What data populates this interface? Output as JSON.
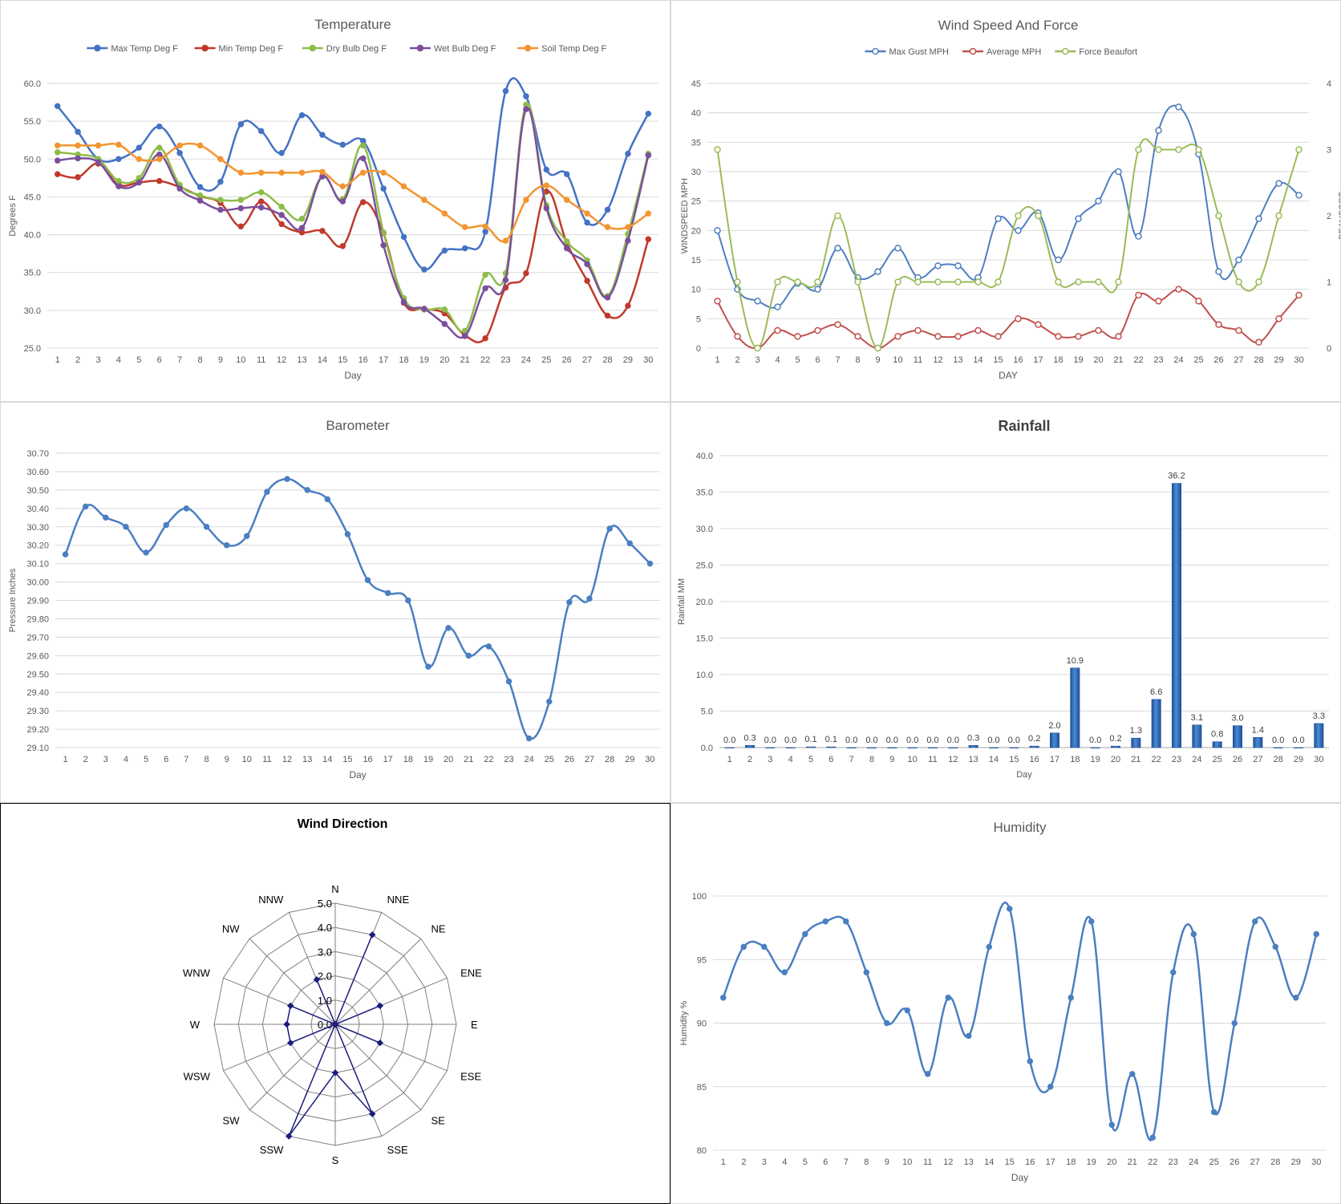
{
  "days": [
    "1",
    "2",
    "3",
    "4",
    "5",
    "6",
    "7",
    "8",
    "9",
    "10",
    "11",
    "12",
    "13",
    "14",
    "15",
    "16",
    "17",
    "18",
    "19",
    "20",
    "21",
    "22",
    "23",
    "24",
    "25",
    "26",
    "27",
    "28",
    "29",
    "30"
  ],
  "chart_data": [
    {
      "id": "temp",
      "type": "line",
      "title": "Temperature",
      "xlabel": "Day",
      "ylabel": "Degrees F",
      "ylim": [
        25,
        60
      ],
      "ytick_labels": [
        "25.0",
        "30.0",
        "35.0",
        "40.0",
        "45.0",
        "50.0",
        "55.0",
        "60.0"
      ],
      "legend_position": "top",
      "series": [
        {
          "name": "Max Temp Deg F",
          "color": "#4472c4",
          "values": [
            57.0,
            53.6,
            50.0,
            50.0,
            51.5,
            54.3,
            50.8,
            46.3,
            47.0,
            54.6,
            53.7,
            50.8,
            55.8,
            53.2,
            51.9,
            52.4,
            46.1,
            39.7,
            35.4,
            37.9,
            38.2,
            40.4,
            59.0,
            58.3,
            48.6,
            48.0,
            41.6,
            43.3,
            50.7,
            56.0
          ]
        },
        {
          "name": "Min Temp Deg F",
          "color": "#c0392b",
          "values": [
            48.0,
            47.6,
            49.4,
            46.6,
            46.9,
            47.1,
            46.3,
            45.1,
            44.2,
            41.1,
            44.4,
            41.4,
            40.3,
            40.5,
            38.5,
            44.3,
            40.2,
            31.0,
            30.2,
            29.6,
            26.7,
            26.3,
            33.0,
            34.9,
            45.7,
            38.9,
            33.9,
            29.3,
            30.6,
            39.4
          ]
        },
        {
          "name": "Dry Bulb Deg F",
          "color": "#8cbd48",
          "values": [
            50.9,
            50.6,
            50.0,
            47.1,
            47.5,
            51.5,
            46.6,
            45.2,
            44.6,
            44.6,
            45.6,
            43.7,
            42.1,
            47.7,
            44.7,
            51.8,
            40.3,
            31.6,
            30.1,
            30.1,
            27.3,
            34.7,
            34.9,
            57.2,
            43.9,
            39.1,
            36.6,
            31.9,
            40.1,
            50.7
          ]
        },
        {
          "name": "Wet Bulb Deg F",
          "color": "#7a4f9c",
          "values": [
            49.8,
            50.1,
            49.6,
            46.4,
            46.9,
            50.6,
            46.1,
            44.5,
            43.3,
            43.5,
            43.6,
            42.6,
            40.9,
            47.7,
            44.4,
            50.1,
            38.6,
            31.1,
            30.2,
            28.2,
            26.6,
            32.9,
            34.0,
            56.6,
            43.5,
            38.2,
            36.1,
            31.7,
            39.2,
            50.5
          ]
        },
        {
          "name": "Soil Temp Deg F",
          "color": "#f39531",
          "values": [
            51.8,
            51.8,
            51.8,
            51.9,
            50.0,
            50.0,
            51.8,
            51.8,
            50.0,
            48.2,
            48.2,
            48.2,
            48.2,
            48.3,
            46.4,
            48.2,
            48.2,
            46.4,
            44.6,
            42.8,
            41.0,
            41.1,
            39.2,
            44.6,
            46.5,
            44.6,
            42.8,
            41.0,
            41.0,
            42.8
          ]
        }
      ]
    },
    {
      "id": "wind",
      "type": "line",
      "title": "Wind Speed And Force",
      "xlabel": "DAY",
      "ylabel": "WINDSPEED MPH",
      "ylabel_right": "BEAUFORT",
      "ylim": [
        0,
        45
      ],
      "ylim_right": [
        0,
        4
      ],
      "ytick_labels": [
        "0",
        "5",
        "10",
        "15",
        "20",
        "25",
        "30",
        "35",
        "40",
        "45"
      ],
      "ytick_labels_right": [
        "0",
        "1",
        "2",
        "3",
        "4"
      ],
      "legend_position": "top",
      "series": [
        {
          "name": "Max Gust MPH",
          "color": "#4f7fc0",
          "axis": "left",
          "values": [
            20,
            10,
            8,
            7,
            11,
            10,
            17,
            12,
            13,
            17,
            12,
            14,
            14,
            12,
            22,
            20,
            23,
            15,
            22,
            25,
            30,
            19,
            37,
            41,
            33,
            13,
            15,
            22,
            28,
            26
          ]
        },
        {
          "name": "Average MPH",
          "color": "#c0504d",
          "axis": "left",
          "values": [
            8,
            2,
            0,
            3,
            2,
            3,
            4,
            2,
            0,
            2,
            3,
            2,
            2,
            3,
            2,
            5,
            4,
            2,
            2,
            3,
            2,
            9,
            8,
            10,
            8,
            4,
            3,
            1,
            5,
            9
          ]
        },
        {
          "name": "Force Beaufort",
          "color": "#9bbb59",
          "axis": "right",
          "values": [
            3,
            1,
            0,
            1,
            1,
            1,
            2,
            1,
            0,
            1,
            1,
            1,
            1,
            1,
            1,
            2,
            2,
            1,
            1,
            1,
            1,
            3,
            3,
            3,
            3,
            2,
            1,
            1,
            2,
            3
          ]
        }
      ]
    },
    {
      "id": "baro",
      "type": "line",
      "title": "Barometer",
      "xlabel": "Day",
      "ylabel": "Pressure Inches",
      "ylim": [
        29.1,
        30.7
      ],
      "ytick_labels": [
        "29.10",
        "29.20",
        "29.30",
        "29.40",
        "29.50",
        "29.60",
        "29.70",
        "29.80",
        "29.90",
        "30.00",
        "30.10",
        "30.20",
        "30.30",
        "30.40",
        "30.50",
        "30.60",
        "30.70"
      ],
      "series": [
        {
          "name": "",
          "color": "#4a7fc1",
          "values": [
            30.15,
            30.41,
            30.35,
            30.3,
            30.16,
            30.31,
            30.4,
            30.3,
            30.2,
            30.25,
            30.49,
            30.56,
            30.5,
            30.45,
            30.26,
            30.01,
            29.94,
            29.9,
            29.54,
            29.75,
            29.6,
            29.65,
            29.46,
            29.15,
            29.35,
            29.89,
            29.91,
            30.29,
            30.21,
            30.1
          ]
        }
      ]
    },
    {
      "id": "rain",
      "type": "bar",
      "title": "Rainfall",
      "xlabel": "Day",
      "ylabel": "Rainfall MM",
      "ylim": [
        0,
        40
      ],
      "ytick_labels": [
        "0.0",
        "5.0",
        "10.0",
        "15.0",
        "20.0",
        "25.0",
        "30.0",
        "35.0",
        "40.0"
      ],
      "values": [
        0.0,
        0.3,
        0.0,
        0.0,
        0.1,
        0.1,
        0.0,
        0.0,
        0.0,
        0.0,
        0.0,
        0.0,
        0.3,
        0.0,
        0.0,
        0.2,
        2.0,
        10.9,
        0.0,
        0.2,
        1.3,
        6.6,
        36.2,
        3.1,
        0.8,
        3.0,
        1.4,
        0.0,
        0.0,
        3.3
      ],
      "value_labels": [
        "0.0",
        "0.3",
        "0.0",
        "0.0",
        "0.1",
        "0.1",
        "0.0",
        "0.0",
        "0.0",
        "0.0",
        "0.0",
        "0.0",
        "0.3",
        "0.0",
        "0.0",
        "0.2",
        "2.0",
        "10.9",
        "0.0",
        "0.2",
        "1.3",
        "6.6",
        "36.2",
        "3.1",
        "0.8",
        "3.0",
        "1.4",
        "0.0",
        "0.0",
        "3.3"
      ],
      "color": "#3a73c4"
    },
    {
      "id": "dir",
      "type": "radar",
      "title": "Wind Direction",
      "rlim": [
        0,
        5
      ],
      "rtick_labels": [
        "0.0",
        "1.0",
        "2.0",
        "3.0",
        "4.0",
        "5.0"
      ],
      "categories": [
        "N",
        "NNE",
        "NE",
        "ENE",
        "E",
        "ESE",
        "SE",
        "SSE",
        "S",
        "SSW",
        "SW",
        "WSW",
        "W",
        "WNW",
        "NW",
        "NNW"
      ],
      "values": [
        0,
        4,
        0,
        2,
        0,
        2,
        0,
        4,
        2,
        5,
        0,
        2,
        2,
        2,
        0,
        2
      ],
      "color": "#1c1c7c"
    },
    {
      "id": "hum",
      "type": "line",
      "title": "Humidity",
      "xlabel": "Day",
      "ylabel": "Humidity %",
      "ylim": [
        80,
        100
      ],
      "ytick_labels": [
        "80",
        "85",
        "90",
        "95",
        "100"
      ],
      "series": [
        {
          "name": "",
          "color": "#4a7fc1",
          "values": [
            92,
            96,
            96,
            94,
            97,
            98,
            98,
            94,
            90,
            91,
            86,
            92,
            89,
            96,
            99,
            87,
            85,
            92,
            98,
            82,
            86,
            81,
            94,
            97,
            83,
            90,
            98,
            96,
            92,
            97
          ]
        }
      ]
    }
  ]
}
